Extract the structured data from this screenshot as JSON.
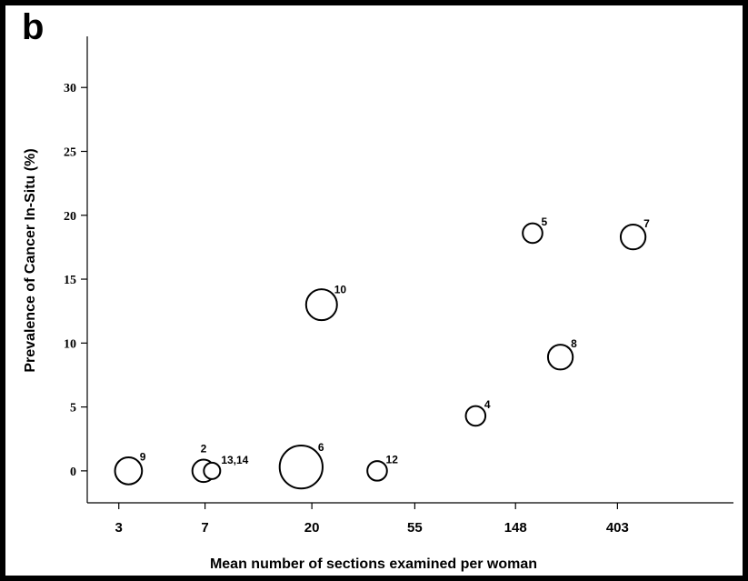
{
  "panel_label": "b",
  "chart_data": {
    "type": "scatter",
    "xlabel": "Mean number of sections examined per woman",
    "ylabel": "Prevalence of Cancer In-Situ (%)",
    "x_scale": "log",
    "xticks": [
      3,
      7,
      20,
      55,
      148,
      403
    ],
    "yticks": [
      0,
      5,
      10,
      15,
      20,
      25,
      30
    ],
    "ylim": [
      -2.5,
      34
    ],
    "xlim": [
      2.2,
      1260
    ],
    "grid": false,
    "points": [
      {
        "label": "9",
        "x": 3.3,
        "y": 0,
        "size": 3
      },
      {
        "label": "2",
        "x": 6.9,
        "y": 0,
        "size": 2
      },
      {
        "label": "13,14",
        "x": 7.5,
        "y": 0,
        "size": 1
      },
      {
        "label": "6",
        "x": 18,
        "y": 0.3,
        "size": 8
      },
      {
        "label": "12",
        "x": 38,
        "y": 0,
        "size": 1.5
      },
      {
        "label": "10",
        "x": 22,
        "y": 13,
        "size": 4
      },
      {
        "label": "4",
        "x": 100,
        "y": 4.3,
        "size": 1.5
      },
      {
        "label": "5",
        "x": 175,
        "y": 18.6,
        "size": 1.5
      },
      {
        "label": "8",
        "x": 230,
        "y": 8.9,
        "size": 2.5
      },
      {
        "label": "7",
        "x": 470,
        "y": 18.3,
        "size": 2.5
      }
    ]
  }
}
